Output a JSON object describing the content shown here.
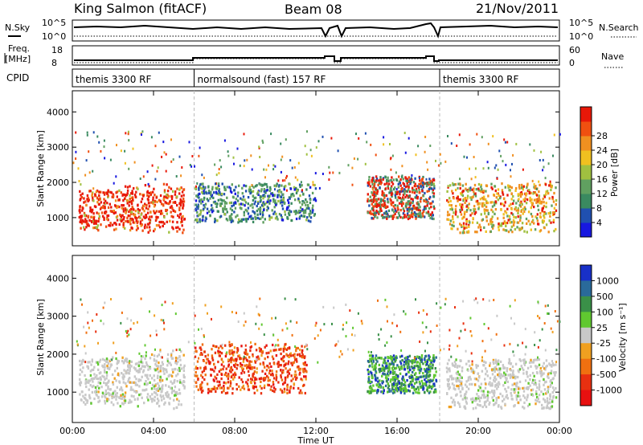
{
  "header": {
    "title": "King Salmon (fitACF)",
    "beam": "Beam 08",
    "date": "21/Nov/2011"
  },
  "top_panels": {
    "nsky_label": "N.Sky",
    "freq_label_1": "Freq.",
    "freq_label_2": "[MHz]",
    "cpid_label": "CPID",
    "nsky_ticks": [
      "10^5",
      "10^0"
    ],
    "freq_ticks": [
      "18",
      "8"
    ],
    "nsearch_label": "N.Search",
    "nave_label": "Nave",
    "right_ticks_top": [
      "10^5",
      "10^0"
    ],
    "right_ticks_bottom": [
      "60",
      "0"
    ],
    "cpid_segments": [
      {
        "label": "themis 3300 RF",
        "start": 0,
        "end": 6
      },
      {
        "label": "normalsound (fast) 157 RF",
        "start": 6,
        "end": 18.1
      },
      {
        "label": "themis 3300 RF",
        "start": 18.1,
        "end": 24
      }
    ]
  },
  "chart_data": [
    {
      "type": "heatmap",
      "name": "power",
      "xlabel": "",
      "ylabel": "Slant Range [km]",
      "xlim": [
        0,
        24
      ],
      "ylim": [
        200,
        4600
      ],
      "yticks": [
        "1000",
        "2000",
        "3000",
        "4000"
      ],
      "colorbar_label": "Power [dB]",
      "colorbar_ticks": [
        "4",
        "8",
        "12",
        "16",
        "20",
        "24",
        "28"
      ],
      "colors": [
        "#1818e0",
        "#2050b0",
        "#3a8a60",
        "#60a060",
        "#a0c040",
        "#f0c020",
        "#f09020",
        "#f05010",
        "#e81808"
      ],
      "data_regions": [
        {
          "t_start": 0.3,
          "t_end": 5.5,
          "range_lo": 700,
          "range_hi": 1800,
          "dominant": "red-orange"
        },
        {
          "t_start": 6.0,
          "t_end": 12.0,
          "range_lo": 900,
          "range_hi": 2000,
          "dominant": "green-blue"
        },
        {
          "t_start": 14.5,
          "t_end": 17.8,
          "range_lo": 1000,
          "range_hi": 2200,
          "dominant": "red-green"
        },
        {
          "t_start": 18.4,
          "t_end": 23.8,
          "range_lo": 600,
          "range_hi": 2000,
          "dominant": "orange-green"
        }
      ]
    },
    {
      "type": "heatmap",
      "name": "velocity",
      "xlabel": "Time UT",
      "ylabel": "Slant Range [km]",
      "xlim": [
        0,
        24
      ],
      "ylim": [
        200,
        4600
      ],
      "xticks": [
        "00:00",
        "04:00",
        "08:00",
        "12:00",
        "16:00",
        "20:00",
        "00:00"
      ],
      "yticks": [
        "1000",
        "2000",
        "3000",
        "4000"
      ],
      "colorbar_label": "Velocity [m s⁻¹]",
      "colorbar_ticks": [
        "1000",
        "500",
        "100",
        "25",
        "-25",
        "-100",
        "-500",
        "-1000"
      ],
      "colors": [
        "#1830c8",
        "#2a6a9a",
        "#3a9048",
        "#60c830",
        "#c8c8c8",
        "#f0a020",
        "#f07010",
        "#e83010",
        "#e81010"
      ],
      "data_regions": [
        {
          "t_start": 0.3,
          "t_end": 5.5,
          "range_lo": 700,
          "range_hi": 1900,
          "dominant": "grey"
        },
        {
          "t_start": 6.0,
          "t_end": 11.5,
          "range_lo": 1000,
          "range_hi": 2300,
          "dominant": "red-orange"
        },
        {
          "t_start": 14.5,
          "t_end": 17.9,
          "range_lo": 1000,
          "range_hi": 2000,
          "dominant": "green-blue"
        },
        {
          "t_start": 18.4,
          "t_end": 23.8,
          "range_lo": 600,
          "range_hi": 1900,
          "dominant": "grey"
        }
      ]
    }
  ]
}
